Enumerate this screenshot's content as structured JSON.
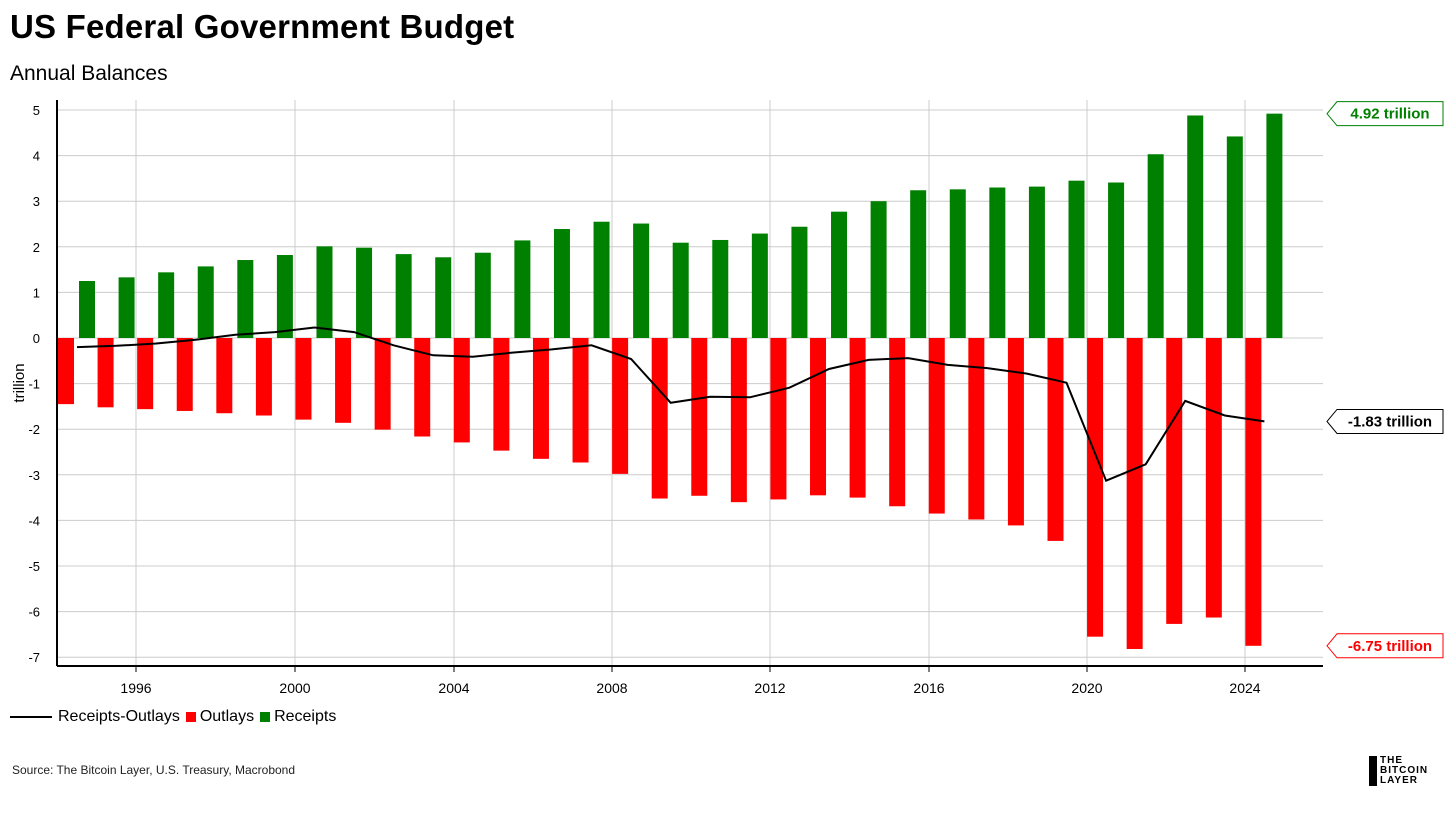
{
  "header": {
    "title": "US Federal Government Budget",
    "subtitle": "Annual Balances"
  },
  "legend": {
    "line_label": "Receipts-Outlays",
    "outlays_label": "Outlays",
    "receipts_label": "Receipts"
  },
  "footer": {
    "source": "Source: The Bitcoin Layer, U.S. Treasury, Macrobond",
    "logo_lines": [
      "THE",
      "BITCOIN",
      "LAYER"
    ]
  },
  "colors": {
    "receipts": "#008000",
    "outlays": "#ff0000",
    "balance": "#000000",
    "grid": "#cccccc"
  },
  "chart_data": {
    "type": "bar",
    "ylabel": "trillion",
    "ylim": [
      -7.2,
      5.2
    ],
    "yticks": [
      5,
      4,
      3,
      2,
      1,
      0,
      -1,
      -2,
      -3,
      -4,
      -5,
      -6,
      -7
    ],
    "xticks": [
      "1996",
      "2000",
      "2004",
      "2008",
      "2012",
      "2016",
      "2020",
      "2024"
    ],
    "categories": [
      "1995",
      "1996",
      "1997",
      "1998",
      "1999",
      "2000",
      "2001",
      "2002",
      "2003",
      "2004",
      "2005",
      "2006",
      "2007",
      "2008",
      "2009",
      "2010",
      "2011",
      "2012",
      "2013",
      "2014",
      "2015",
      "2016",
      "2017",
      "2018",
      "2019",
      "2020",
      "2021",
      "2022",
      "2023",
      "2024",
      "2025"
    ],
    "series": [
      {
        "name": "Receipts",
        "values": [
          1.25,
          1.33,
          1.44,
          1.57,
          1.71,
          1.82,
          2.01,
          1.98,
          1.84,
          1.77,
          1.87,
          2.14,
          2.39,
          2.55,
          2.51,
          2.09,
          2.15,
          2.29,
          2.44,
          2.77,
          3.0,
          3.24,
          3.26,
          3.3,
          3.32,
          3.45,
          3.41,
          4.03,
          4.88,
          4.42,
          4.92
        ]
      },
      {
        "name": "Outlays",
        "values": [
          -1.45,
          -1.52,
          -1.56,
          -1.6,
          -1.65,
          -1.7,
          -1.79,
          -1.86,
          -2.01,
          -2.16,
          -2.29,
          -2.47,
          -2.65,
          -2.73,
          -2.98,
          -3.52,
          -3.46,
          -3.6,
          -3.54,
          -3.45,
          -3.5,
          -3.69,
          -3.85,
          -3.98,
          -4.11,
          -4.45,
          -6.55,
          -6.82,
          -6.27,
          -6.13,
          -6.75
        ]
      },
      {
        "name": "Receipts-Outlays",
        "values": [
          -0.2,
          -0.17,
          -0.12,
          -0.04,
          0.07,
          0.13,
          0.23,
          0.13,
          -0.16,
          -0.38,
          -0.41,
          -0.32,
          -0.25,
          -0.16,
          -0.46,
          -1.42,
          -1.29,
          -1.3,
          -1.09,
          -0.68,
          -0.48,
          -0.44,
          -0.59,
          -0.66,
          -0.78,
          -0.98,
          -3.13,
          -2.77,
          -1.38,
          -1.7,
          -1.83
        ]
      }
    ],
    "annotations": [
      {
        "label": "4.92 trillion",
        "value": 4.92,
        "color": "#008000"
      },
      {
        "label": "-1.83 trillion",
        "value": -1.83,
        "color": "#000000"
      },
      {
        "label": "-6.75 trillion",
        "value": -6.75,
        "color": "#ff0000"
      }
    ]
  }
}
